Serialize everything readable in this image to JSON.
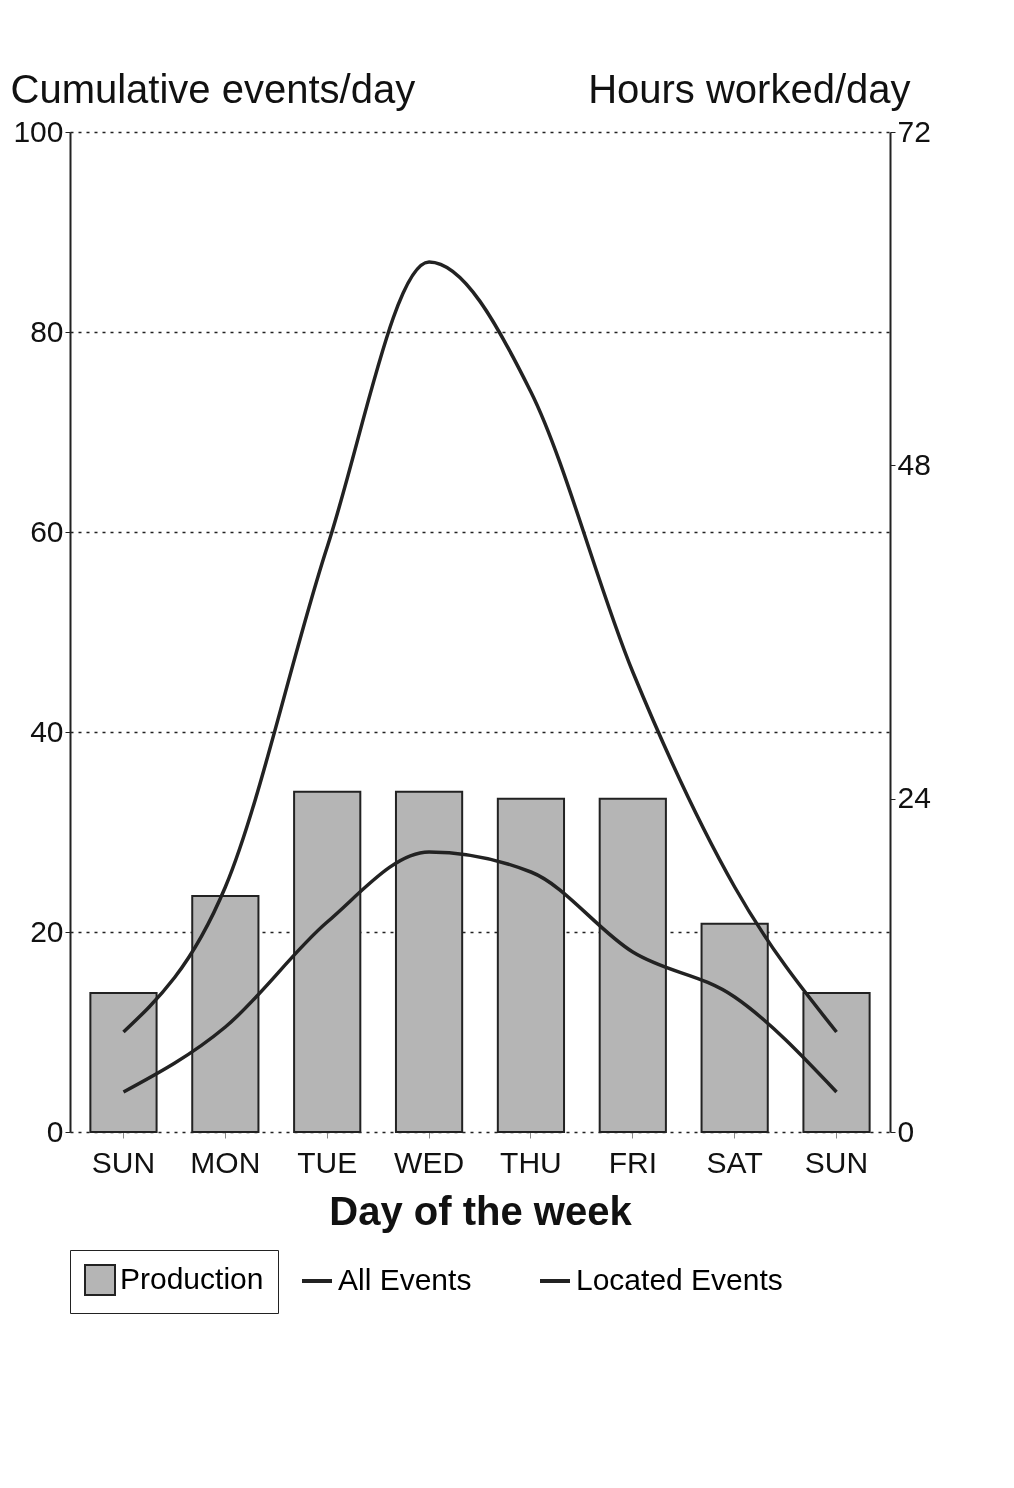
{
  "chart_data": {
    "type": "line",
    "xlabel": "Day of the week",
    "ylabel": "Cumulative events/day",
    "y2label": "Hours worked/day",
    "categories": [
      "SUN",
      "MON",
      "TUE",
      "WED",
      "THU",
      "FRI",
      "SAT",
      "SUN"
    ],
    "series": [
      {
        "name": "All Events",
        "color": "#222222",
        "values": [
          10,
          24.5,
          58.5,
          87,
          74,
          46,
          24.5,
          10
        ]
      },
      {
        "name": "Located Events",
        "color": "#222222",
        "values": [
          4,
          10.5,
          21,
          28,
          26,
          18,
          13.5,
          4
        ]
      },
      {
        "name": "Production",
        "type": "bar",
        "axis": "y2",
        "color": "#b5b5b5",
        "values": [
          10,
          17,
          24.5,
          24.5,
          24,
          24,
          15,
          10
        ]
      }
    ],
    "ylim": [
      0,
      100
    ],
    "yticks": [
      0,
      20,
      40,
      60,
      80,
      100
    ],
    "y2lim": [
      0,
      72
    ],
    "y2ticks": [
      0,
      24,
      48,
      72
    ],
    "grid": "y",
    "legend": "bottom",
    "line_style": "solid",
    "marker": "none"
  }
}
